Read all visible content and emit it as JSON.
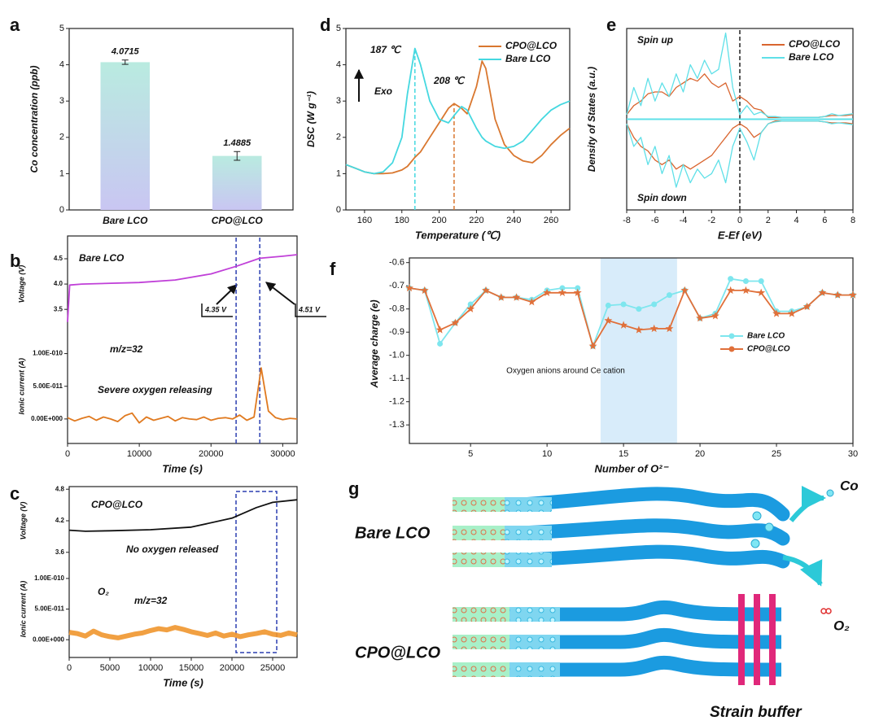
{
  "chart_data": [
    {
      "panel": "a",
      "type": "bar",
      "categories": [
        "Bare LCO",
        "CPO@LCO"
      ],
      "values": [
        4.0715,
        1.4885
      ],
      "errors": [
        0.06,
        0.12
      ],
      "color": "#b9ebe0",
      "color2": "#c9c6f2",
      "ylabel": "Co concentration (ppb)",
      "ylim": [
        0,
        5
      ],
      "yticks": [
        0,
        1,
        2,
        3,
        4,
        5
      ]
    },
    {
      "panel": "d",
      "type": "line",
      "xlabel": "Temperature (℃)",
      "ylabel": "DSC (W g⁻¹)",
      "x": [
        150,
        155,
        160,
        165,
        170,
        175,
        180,
        183,
        187,
        190,
        195,
        200,
        205,
        208,
        212,
        215,
        220,
        223,
        225,
        230,
        235,
        240,
        245,
        250,
        255,
        260,
        265,
        270
      ],
      "xlim": [
        150,
        270
      ],
      "xticks": [
        160,
        180,
        200,
        220,
        240,
        260
      ],
      "ylim": [
        0,
        5
      ],
      "yticks": [
        0,
        1,
        2,
        3,
        4,
        5
      ],
      "series": [
        {
          "name": "CPO@LCO",
          "color": "#d9772f",
          "values": [
            1.25,
            1.15,
            1.05,
            1.0,
            1.0,
            1.02,
            1.1,
            1.2,
            1.45,
            1.6,
            2.0,
            2.4,
            2.8,
            2.93,
            2.8,
            2.65,
            3.4,
            4.1,
            3.9,
            2.5,
            1.8,
            1.5,
            1.35,
            1.3,
            1.5,
            1.8,
            2.05,
            2.25
          ]
        },
        {
          "name": "Bare LCO",
          "color": "#45d8e0",
          "values": [
            1.25,
            1.15,
            1.05,
            1.0,
            1.05,
            1.3,
            2.0,
            3.2,
            4.45,
            4.0,
            3.0,
            2.5,
            2.4,
            2.6,
            2.85,
            2.75,
            2.25,
            2.0,
            1.9,
            1.75,
            1.7,
            1.75,
            1.9,
            2.2,
            2.5,
            2.75,
            2.9,
            3.0
          ]
        }
      ],
      "annotations": [
        "187 ℃",
        "208 ℃",
        "Exo"
      ],
      "vlines": [
        187,
        208
      ],
      "legend": "upper right"
    },
    {
      "panel": "e",
      "type": "line",
      "xlabel": "E-Ef (eV)",
      "ylabel": "Density of States (a.u.)",
      "x": [
        -8,
        -7.5,
        -7,
        -6.5,
        -6,
        -5.5,
        -5,
        -4.5,
        -4,
        -3.5,
        -3,
        -2.5,
        -2,
        -1.5,
        -1,
        -0.5,
        0,
        0.5,
        1,
        1.5,
        2,
        2.5,
        3,
        3.5,
        4,
        4.5,
        5,
        5.5,
        6,
        6.5,
        7,
        7.5,
        8
      ],
      "xlim": [
        -8,
        8
      ],
      "xticks": [
        -8,
        -6,
        -4,
        -2,
        0,
        2,
        4,
        6,
        8
      ],
      "ylim": [
        -1,
        1
      ],
      "series": [
        {
          "name": "CPO@LCO",
          "color": "#d9652f",
          "values": [
            0.05,
            0.15,
            0.2,
            0.28,
            0.3,
            0.3,
            0.25,
            0.35,
            0.4,
            0.45,
            0.42,
            0.5,
            0.4,
            0.35,
            0.4,
            0.2,
            0.25,
            0.2,
            0.12,
            0.1,
            0.02,
            0.02,
            0.02,
            0.02,
            0.02,
            0.02,
            0.02,
            0.02,
            0.03,
            0.04,
            0.04,
            0.04,
            0.05
          ],
          "values_down": [
            -0.05,
            -0.2,
            -0.3,
            -0.35,
            -0.45,
            -0.5,
            -0.45,
            -0.55,
            -0.5,
            -0.55,
            -0.5,
            -0.45,
            -0.4,
            -0.3,
            -0.2,
            -0.1,
            -0.05,
            -0.1,
            -0.2,
            -0.15,
            -0.05,
            -0.02,
            -0.02,
            -0.02,
            -0.02,
            -0.02,
            -0.02,
            -0.02,
            -0.03,
            -0.04,
            -0.04,
            -0.04,
            -0.05
          ]
        },
        {
          "name": "Bare LCO",
          "color": "#5fe0e8",
          "values": [
            0.05,
            0.35,
            0.15,
            0.45,
            0.2,
            0.4,
            0.25,
            0.5,
            0.3,
            0.6,
            0.45,
            0.65,
            0.5,
            0.55,
            0.95,
            0.35,
            0.05,
            0.15,
            0.05,
            0.08,
            0.03,
            0.03,
            0.02,
            0.02,
            0.02,
            0.02,
            0.02,
            0.02,
            0.03,
            0.06,
            0.04,
            0.05,
            0.06
          ],
          "values_down": [
            -0.05,
            -0.3,
            -0.2,
            -0.5,
            -0.3,
            -0.6,
            -0.4,
            -0.75,
            -0.5,
            -0.7,
            -0.55,
            -0.65,
            -0.6,
            -0.45,
            -0.7,
            -0.3,
            -0.1,
            -0.25,
            -0.45,
            -0.15,
            -0.05,
            -0.03,
            -0.02,
            -0.02,
            -0.02,
            -0.02,
            -0.02,
            -0.02,
            -0.03,
            -0.05,
            -0.04,
            -0.05,
            -0.06
          ]
        }
      ],
      "annotations": [
        "Spin up",
        "Spin down"
      ],
      "vlines": [
        0
      ],
      "legend": "upper right"
    },
    {
      "panel": "b",
      "type": "line",
      "xlabel": "Time (s)",
      "ylabel": "Voltage (V)",
      "y2label": "Ionic current (A)",
      "xlim": [
        0,
        32000
      ],
      "xticks": [
        0,
        10000,
        20000,
        30000
      ],
      "ylim": [
        0.85,
        4.95
      ],
      "yticks": [
        3.5,
        {
          "value": 4,
          "label": "4.0"
        },
        4.5
      ],
      "y2lim": [
        -3.75e-11,
        2.8e-10
      ],
      "y2ticks": [
        {
          "value": 0,
          "label": "0.00E+000"
        },
        {
          "value": 5e-11,
          "label": "5.00E-011"
        },
        {
          "value": 1e-10,
          "label": "1.00E-010"
        }
      ],
      "series": [
        {
          "color": "#c040d8",
          "x": [
            0,
            300,
            2000,
            10000,
            15000,
            20000,
            23500,
            26800,
            30000,
            32000
          ],
          "values": [
            3.25,
            3.98,
            4.0,
            4.03,
            4.08,
            4.2,
            4.35,
            4.51,
            4.55,
            4.58
          ]
        },
        {
          "color": "#e07a20",
          "axis": "y2",
          "x": [
            0,
            1000,
            2000,
            3000,
            4000,
            5000,
            6000,
            7000,
            8000,
            9000,
            10000,
            11000,
            12000,
            13000,
            14000,
            15000,
            16000,
            17000,
            18000,
            19000,
            20000,
            21000,
            22000,
            23000,
            24000,
            25000,
            26000,
            27000,
            28000,
            29000,
            30000,
            31000,
            32000
          ],
          "values": [
            2e-12,
            -3e-12,
            1e-12,
            4e-12,
            -2e-12,
            3e-12,
            0,
            -4e-12,
            5e-12,
            9e-12,
            -6e-12,
            3e-12,
            -2e-12,
            1e-12,
            4e-12,
            -3e-12,
            2e-12,
            0,
            -1e-12,
            3e-12,
            -2e-12,
            1e-12,
            2e-12,
            0,
            6e-12,
            -2e-12,
            3e-12,
            7.8e-11,
            1.2e-11,
            2e-12,
            -1e-12,
            1e-12,
            0
          ]
        }
      ],
      "annotations": [
        "Bare LCO",
        "m/z=32",
        "Severe oxygen releasing",
        "4.35 V",
        "4.51 V"
      ],
      "vlines": [
        23500,
        26800
      ]
    },
    {
      "panel": "f",
      "type": "line",
      "xlabel": "Number of O²⁻",
      "ylabel": "Average charge (e)",
      "x": [
        1,
        2,
        3,
        4,
        5,
        6,
        7,
        8,
        9,
        10,
        11,
        12,
        13,
        14,
        15,
        16,
        17,
        18,
        19,
        20,
        21,
        22,
        23,
        24,
        25,
        26,
        27,
        28,
        29,
        30
      ],
      "xlim": [
        1,
        30
      ],
      "xticks": [
        5,
        10,
        15,
        20,
        25,
        30
      ],
      "ylim": [
        -1.38,
        -0.58
      ],
      "yticks": [
        -0.6,
        -0.7,
        -0.8,
        -0.9,
        {
          "value": -1,
          "label": "-1.0"
        },
        -1.1,
        -1.2,
        -1.3
      ],
      "band": [
        13.5,
        18.5
      ],
      "series": [
        {
          "name": "Bare LCO",
          "color": "#7ee6ee",
          "marker": "circle",
          "values": [
            -0.71,
            -0.72,
            -0.95,
            -0.86,
            -0.78,
            -0.72,
            -0.75,
            -0.75,
            -0.76,
            -0.72,
            -0.71,
            -0.71,
            -0.96,
            -0.785,
            -0.78,
            -0.8,
            -0.78,
            -0.74,
            -0.72,
            -0.84,
            -0.82,
            -0.67,
            -0.68,
            -0.68,
            -0.81,
            -0.81,
            -0.79,
            -0.73,
            -0.74,
            -0.74
          ]
        },
        {
          "name": "CPO@LCO",
          "color": "#e0703a",
          "marker": "star",
          "values": [
            -0.71,
            -0.72,
            -0.89,
            -0.86,
            -0.8,
            -0.72,
            -0.75,
            -0.75,
            -0.77,
            -0.73,
            -0.73,
            -0.73,
            -0.96,
            -0.85,
            -0.87,
            -0.89,
            -0.885,
            -0.885,
            -0.72,
            -0.84,
            -0.83,
            -0.72,
            -0.72,
            -0.73,
            -0.82,
            -0.82,
            -0.79,
            -0.73,
            -0.74,
            -0.74
          ]
        }
      ],
      "annotations": [
        "Oxygen anions around Ce cation"
      ],
      "legend": "center right"
    },
    {
      "panel": "c",
      "type": "line",
      "xlabel": "Time (s)",
      "ylabel": "Voltage (V)",
      "y2label": "Ionic current (A)",
      "xlim": [
        0,
        28000
      ],
      "xticks": [
        0,
        5000,
        10000,
        15000,
        20000,
        25000
      ],
      "ylim": [
        1.6,
        4.85
      ],
      "yticks": [
        3.6,
        4.2,
        4.8
      ],
      "y2lim": [
        -2.9e-11,
        2.5e-10
      ],
      "y2ticks": [
        {
          "value": 0,
          "label": "0.00E+000"
        },
        {
          "value": 5e-11,
          "label": "5.00E-011"
        },
        {
          "value": 1e-10,
          "label": "1.00E-010"
        }
      ],
      "series": [
        {
          "color": "#111111",
          "x": [
            0,
            2000,
            5000,
            10000,
            15000,
            20000,
            23000,
            25000,
            28000
          ],
          "values": [
            4.02,
            4.0,
            4.01,
            4.03,
            4.08,
            4.25,
            4.45,
            4.55,
            4.6
          ]
        },
        {
          "color": "#f0962e",
          "axis": "y2",
          "x": [
            0,
            1000,
            2000,
            3000,
            4000,
            5000,
            6000,
            7000,
            8000,
            9000,
            10000,
            11000,
            12000,
            13000,
            14000,
            15000,
            16000,
            17000,
            18000,
            19000,
            20000,
            21000,
            22000,
            23000,
            24000,
            25000,
            26000,
            27000,
            28000
          ],
          "values": [
            1.2e-11,
            1e-11,
            6e-12,
            1.4e-11,
            8e-12,
            5e-12,
            3e-12,
            6e-12,
            9e-12,
            1.1e-11,
            1.5e-11,
            1.8e-11,
            1.6e-11,
            2e-11,
            1.7e-11,
            1.3e-11,
            1e-11,
            7e-12,
            1.1e-11,
            6e-12,
            9e-12,
            5e-12,
            8e-12,
            1e-11,
            1.3e-11,
            9e-12,
            7e-12,
            1.1e-11,
            8e-12
          ]
        }
      ],
      "annotations": [
        "CPO@LCO",
        "No oxygen released",
        "O₂",
        "m/z=32"
      ],
      "box": [
        20500,
        25500
      ]
    }
  ],
  "diagram": {
    "panel": "g",
    "labels": [
      "Bare LCO",
      "CPO@LCO",
      "Co",
      "O₂",
      "Strain buffer"
    ]
  }
}
